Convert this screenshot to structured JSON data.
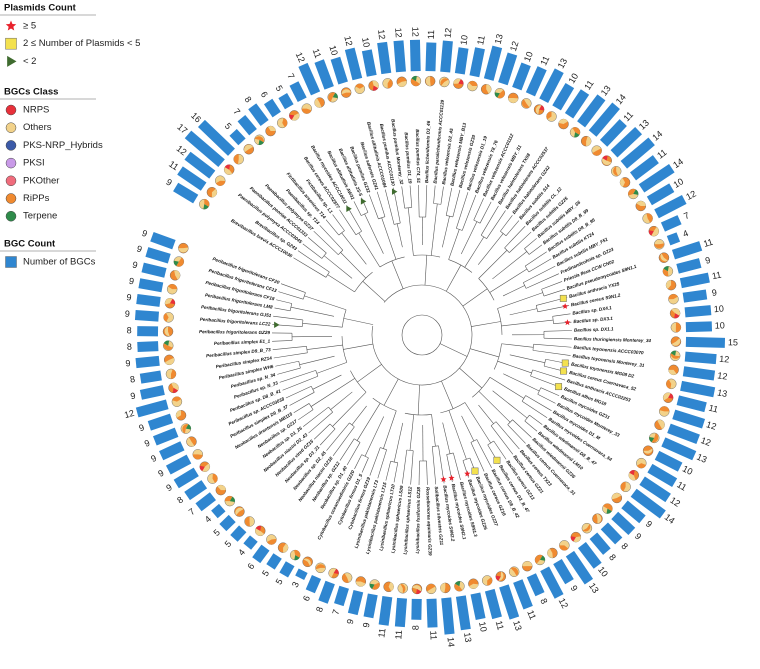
{
  "legends": [
    {
      "title": "Plasmids Count",
      "items": [
        {
          "label": "≥ 5",
          "color": "#e8212b"
        },
        {
          "label": "2 ≤ Number of Plasmids < 5",
          "color": "#f3e14f"
        },
        {
          "label": "< 2",
          "color": "#3f6b2f"
        }
      ]
    },
    {
      "title": "BGCs Class",
      "items": [
        {
          "label": "NRPS",
          "color": "#e8303a"
        },
        {
          "label": "Others",
          "color": "#f2d28a"
        },
        {
          "label": "PKS-NRP_Hybrids",
          "color": "#3b5aa8"
        },
        {
          "label": "PKSI",
          "color": "#c99ae8"
        },
        {
          "label": "PKOther",
          "color": "#f06c7c"
        },
        {
          "label": "RiPPs",
          "color": "#f08a30"
        },
        {
          "label": "Terpene",
          "color": "#2e8b4a"
        }
      ]
    },
    {
      "title": "BGC Count",
      "items": [
        {
          "label": "Number of BGCs",
          "color": "#2f86d0"
        }
      ]
    }
  ],
  "leaves": [
    {
      "label": "Brevibacillus brevis ACCC10036",
      "bgc_count": 9
    },
    {
      "label": "Brevibacillus sp. GZ43",
      "bgc_count": 11
    },
    {
      "label": "Paenibacillus polymyxa ACCC03045",
      "bgc_count": 12
    },
    {
      "label": "Paenibacillus peoriae ACCC01333",
      "bgc_count": 17
    },
    {
      "label": "Paenibacillus polymyxa GZ37",
      "bgc_count": 16
    },
    {
      "label": "Paenibacillus sp. T14",
      "bgc_count": 5
    },
    {
      "label": "Fictibacillus arsenicus T14",
      "bgc_count": 7
    },
    {
      "label": "Fictibacillus sp. L1",
      "bgc_count": 8
    },
    {
      "label": "Bacillus cereus ACCC02877",
      "bgc_count": 6
    },
    {
      "label": "Bacillus mycoides ACCC10011",
      "bgc_count": 5,
      "plasmids_class": 2
    },
    {
      "label": "Bacillus altitudinis AW31",
      "bgc_count": 7
    },
    {
      "label": "Bacillus altitudinis 2S-5",
      "bgc_count": 12,
      "plasmids_class": 2
    },
    {
      "label": "Bacillus pumilus GZ32",
      "bgc_count": 11
    },
    {
      "label": "Bacillus safensis GZ41",
      "bgc_count": 10
    },
    {
      "label": "Bacillus altitudinis ACCC01084",
      "bgc_count": 12
    },
    {
      "label": "Bacillus pumilus ACCC01130",
      "bgc_count": 10,
      "plasmids_class": 2
    },
    {
      "label": "Bacillus pumilus Monterey_32",
      "bgc_count": 12
    },
    {
      "label": "Bacillus pumilus D1_19",
      "bgc_count": 12
    },
    {
      "label": "Bacillus pumilus C74_51",
      "bgc_count": 12
    },
    {
      "label": "Bacillus licheniformis D3_46",
      "bgc_count": 11
    },
    {
      "label": "Bacillus paralicheniformis ACCC01139",
      "bgc_count": 12
    },
    {
      "label": "Bacillus velezensis D2_45",
      "bgc_count": 10
    },
    {
      "label": "Bacillus velezensis MBY_B13",
      "bgc_count": 11
    },
    {
      "label": "Bacillus velezensis GZ30",
      "bgc_count": 13
    },
    {
      "label": "Bacillus velezensis D1_19",
      "bgc_count": 12
    },
    {
      "label": "Bacillus velezensis T8_76",
      "bgc_count": 10
    },
    {
      "label": "Bacillus velezensis ACCC01112",
      "bgc_count": 11
    },
    {
      "label": "Bacillus velezensis MBY_S1",
      "bgc_count": 13
    },
    {
      "label": "Bacillus halotolerans TX08",
      "bgc_count": 10
    },
    {
      "label": "Bacillus halotolerans ACCC02537",
      "bgc_count": 11
    },
    {
      "label": "Bacillus halotolerans GZ42",
      "bgc_count": 13
    },
    {
      "label": "Bacillus subtilis S14",
      "bgc_count": 14
    },
    {
      "label": "Bacillus subtilis CL_12",
      "bgc_count": 11
    },
    {
      "label": "Bacillus subtilis GZ25",
      "bgc_count": 13
    },
    {
      "label": "Bacillus subtilis MBY_S6",
      "bgc_count": 14
    },
    {
      "label": "Bacillus subtilis D8_B_99",
      "bgc_count": 11
    },
    {
      "label": "Bacillus subtilis D8_B_95",
      "bgc_count": 14
    },
    {
      "label": "Bacillus subtilis KT24",
      "bgc_count": 10
    },
    {
      "label": "Bacillus subtilis MBY_F51",
      "bgc_count": 12
    },
    {
      "label": "Fredinandcohnia sp. GZ23",
      "bgc_count": 7
    },
    {
      "label": "Priestia flexa CCW CN02",
      "bgc_count": 4
    },
    {
      "label": "Bacillus pseudomycoides S9N1.1",
      "bgc_count": 11
    },
    {
      "label": "Bacillus anthracis YX25",
      "bgc_count": 9,
      "plasmids_class": 1
    },
    {
      "label": "Bacillus cereus S9N1.2",
      "bgc_count": 11,
      "plasmids_class": 0
    },
    {
      "label": "Bacillus sp. DX4.1",
      "bgc_count": 9
    },
    {
      "label": "Bacillus sp. DX3.1",
      "bgc_count": 10,
      "plasmids_class": 0
    },
    {
      "label": "Bacillus sp. DX1.1",
      "bgc_count": 10
    },
    {
      "label": "Bacillus thuringiensis Monterey_34",
      "bgc_count": 15
    },
    {
      "label": "Bacillus toyonensis ACCC03070",
      "bgc_count": 12
    },
    {
      "label": "Bacillus toyonensis Monterey_31",
      "bgc_count": 12
    },
    {
      "label": "Bacillus toyonensis MG08 D2",
      "bgc_count": 13,
      "plasmids_class": 1
    },
    {
      "label": "Bacillus cereus Cuernavaca_52",
      "bgc_count": 11,
      "plasmids_class": 1
    },
    {
      "label": "Bacillus anthracis ACCC02253",
      "bgc_count": 12
    },
    {
      "label": "Bacillus albus MG18",
      "bgc_count": 12,
      "plasmids_class": 1
    },
    {
      "label": "Bacillus mycoides GZ31",
      "bgc_count": 13
    },
    {
      "label": "Bacillus mycoides Monterey_33",
      "bgc_count": 10
    },
    {
      "label": "Bacillus mycoides D1_M",
      "bgc_count": 11
    },
    {
      "label": "Bacillus mycoides Cuernavaca_54",
      "bgc_count": 12
    },
    {
      "label": "Bacillus wiedmannii D8_B_47",
      "bgc_count": 14
    },
    {
      "label": "Bacillus wiedmannii LM10",
      "bgc_count": 9
    },
    {
      "label": "Bacillus wiedmannii GZ36",
      "bgc_count": 9
    },
    {
      "label": "Bacillus cereus Cuernavaca_51",
      "bgc_count": 8
    },
    {
      "label": "Bacillus cereus TX23",
      "bgc_count": 8
    },
    {
      "label": "Bacillus cereus GZ21",
      "bgc_count": 10
    },
    {
      "label": "Bacillus cereus GZ13",
      "bgc_count": 13
    },
    {
      "label": "Bacillus cereus D3_B_47",
      "bgc_count": 9,
      "plasmids_class": 1
    },
    {
      "label": "Bacillus cereus D8_B_42",
      "bgc_count": 12
    },
    {
      "label": "Bacillus cereus GZ16",
      "bgc_count": 8
    },
    {
      "label": "Bacillus mycoides GZ27",
      "bgc_count": 11,
      "plasmids_class": 1
    },
    {
      "label": "Bacillus mycoides GZ26",
      "bgc_count": 13,
      "plasmids_class": 0
    },
    {
      "label": "Bacillus mycoides S9N1.3",
      "bgc_count": 11
    },
    {
      "label": "Bacillus mycoides S9N2.1",
      "bgc_count": 10,
      "plasmids_class": 0
    },
    {
      "label": "Bacillus mycoides S9N2.2",
      "bgc_count": 13,
      "plasmids_class": 0
    },
    {
      "label": "Solibacillus silvestris GZ11",
      "bgc_count": 14
    },
    {
      "label": "Rossellomorea aquimaris GZ39",
      "bgc_count": 11
    },
    {
      "label": "Lysinibacillus fusiformis GZ38",
      "bgc_count": 8
    },
    {
      "label": "Lysinibacillus sphaericus LS12",
      "bgc_count": 11
    },
    {
      "label": "Lysinibacillus sphaericus LS09",
      "bgc_count": 11
    },
    {
      "label": "Lysinibacillus sphaericus LT10",
      "bgc_count": 9
    },
    {
      "label": "Lysinibacillus pakistanensis LT15",
      "bgc_count": 9
    },
    {
      "label": "Lysinibacillus pakistanensis LT3",
      "bgc_count": 7
    },
    {
      "label": "Cytobacillus firmus GZ19",
      "bgc_count": 8
    },
    {
      "label": "Cytobacillus firmus D1_5",
      "bgc_count": 6
    },
    {
      "label": "Cytobacillus oceanisediminis GZ20",
      "bgc_count": 3
    },
    {
      "label": "Neobacillus sp. D1_40",
      "bgc_count": 5
    },
    {
      "label": "Neobacillus sp. GZ12",
      "bgc_count": 5
    },
    {
      "label": "Neobacillus niacini GZ18",
      "bgc_count": 6
    },
    {
      "label": "Neobacillus sp. D2_45",
      "bgc_count": 4
    },
    {
      "label": "Neobacillus sp. D3_21",
      "bgc_count": 5
    },
    {
      "label": "Neobacillus vireti GZ15",
      "bgc_count": 5
    },
    {
      "label": "Neobacillus niacini D2_43",
      "bgc_count": 4
    },
    {
      "label": "Neobacillus sp. D1_26",
      "bgc_count": 7
    },
    {
      "label": "Neobacillus sp. GZ17",
      "bgc_count": 8
    },
    {
      "label": "Neobacillus drentensis MB115",
      "bgc_count": 9
    },
    {
      "label": "Peribacillus simplex D9_B_37",
      "bgc_count": 9
    },
    {
      "label": "Peribacillus sp. ACCC03038",
      "bgc_count": 9
    },
    {
      "label": "Peribacillus sp. D8_B_41",
      "bgc_count": 9
    },
    {
      "label": "Peribacillus sp. N_33",
      "bgc_count": 9
    },
    {
      "label": "Peribacillus sp. N_34",
      "bgc_count": 12
    },
    {
      "label": "Peribacillus simplex WH6",
      "bgc_count": 9
    },
    {
      "label": "Peribacillus simplex RZ14",
      "bgc_count": 8
    },
    {
      "label": "Peribacillus simplex D9_B_73",
      "bgc_count": 9
    },
    {
      "label": "Peribacillus simplex E1_1",
      "bgc_count": 8
    },
    {
      "label": "Peribacillus frigoritolerans GZ29",
      "bgc_count": 8
    },
    {
      "label": "Peribacillus frigoritolerans LC22",
      "bgc_count": 9,
      "plasmids_class": 2
    },
    {
      "label": "Peribacillus frigoritolerans GJ51",
      "bgc_count": 9
    },
    {
      "label": "Peribacillus frigoritolerans LM8",
      "bgc_count": 9
    },
    {
      "label": "Peribacillus frigoritolerans CF18",
      "bgc_count": 9
    },
    {
      "label": "Peribacillus frigoritolerans CF13",
      "bgc_count": 9
    },
    {
      "label": "Peribacillus frigoritolerans CF20",
      "bgc_count": 9
    }
  ]
}
